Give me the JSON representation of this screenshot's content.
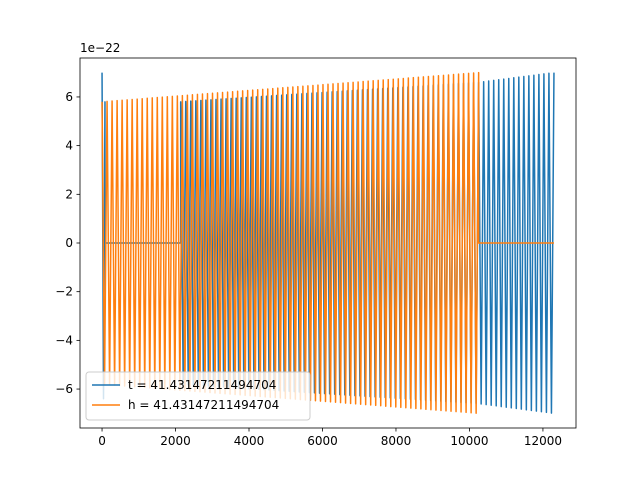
{
  "chart_data": {
    "type": "line",
    "offset_label": "1e−22",
    "xlim": [
      -600,
      12900
    ],
    "ylim": [
      -7.6,
      7.6
    ],
    "x_ticks": [
      0,
      2000,
      4000,
      6000,
      8000,
      10000,
      12000
    ],
    "x_tick_labels": [
      "0",
      "2000",
      "4000",
      "6000",
      "8000",
      "10000",
      "12000"
    ],
    "y_ticks": [
      -6,
      -4,
      -2,
      0,
      2,
      4,
      6
    ],
    "y_tick_labels": [
      "−6",
      "−4",
      "−2",
      "0",
      "2",
      "4",
      "6"
    ],
    "grid": false,
    "legend_position": "lower-left",
    "series": [
      {
        "name": "t = 41.43147211494704",
        "color": "#1f77b4",
        "segments": [
          {
            "kind": "osc",
            "x_start": 0,
            "x_end": 80,
            "amp_start": 7.0,
            "amp_end": 5.8,
            "cycles": 1
          },
          {
            "kind": "flat",
            "x_start": 80,
            "x_end": 2140,
            "value": 0.0
          },
          {
            "kind": "osc",
            "x_start": 2140,
            "x_end": 10250,
            "amp_start": 5.8,
            "amp_end": 6.6,
            "cycles": 59
          },
          {
            "kind": "osc",
            "x_start": 10250,
            "x_end": 12300,
            "amp_start": 6.6,
            "amp_end": 7.0,
            "cycles": 15
          }
        ]
      },
      {
        "name": "h = 41.43147211494704",
        "color": "#ff7f0e",
        "segments": [
          {
            "kind": "osc",
            "x_start": 0,
            "x_end": 10250,
            "amp_start": 5.8,
            "amp_end": 7.0,
            "cycles": 75
          },
          {
            "kind": "flat",
            "x_start": 10250,
            "x_end": 12300,
            "value": 0.0
          }
        ]
      }
    ]
  }
}
